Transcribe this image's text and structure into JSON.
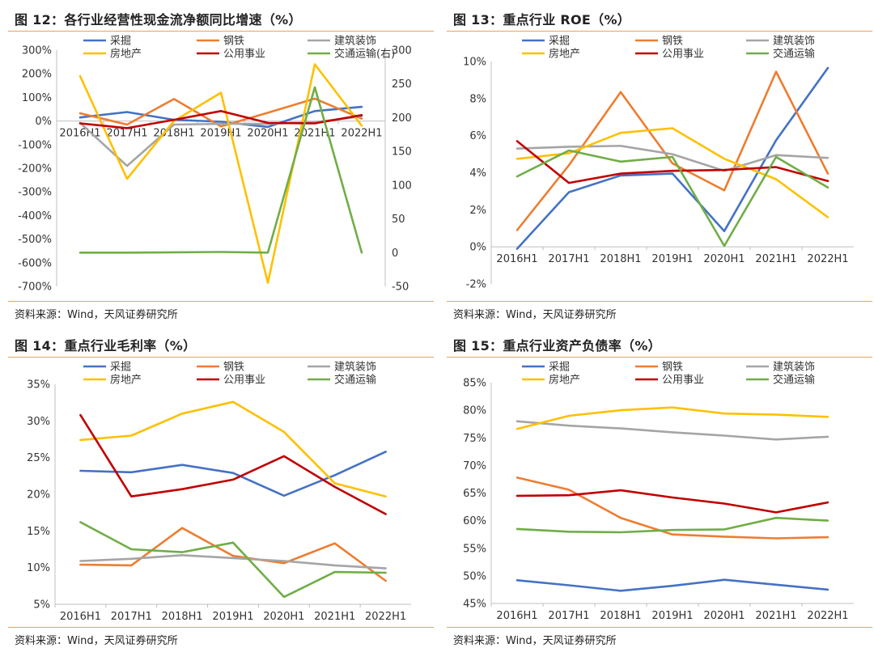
{
  "source": "资料来源：Wind，天风证券研究所",
  "colors": {
    "采掘": "#4472c4",
    "钢铁": "#ed7d31",
    "建筑装饰": "#a5a5a5",
    "房地产": "#ffc000",
    "公用事业": "#c00000",
    "交通运输": "#70ad47",
    "交通运输(右)": "#70ad47"
  },
  "panels": [
    {
      "title": "图 12：各行业经营性现金流净额同比增速（%）",
      "chart_data": {
        "type": "line",
        "categories": [
          "2016H1",
          "2017H1",
          "2018H1",
          "2019H1",
          "2020H1",
          "2021H1",
          "2022H1"
        ],
        "y_ticks": [
          "300%",
          "200%",
          "100%",
          "0%",
          "-100%",
          "-200%",
          "-300%",
          "-400%",
          "-500%",
          "-600%",
          "-700%"
        ],
        "ylim": [
          -700,
          300
        ],
        "y2_ticks": [
          "300",
          "250",
          "200",
          "150",
          "100",
          "50",
          "0",
          "-50"
        ],
        "y2lim": [
          -50,
          300
        ],
        "grid": false,
        "legend_position": "top",
        "series": [
          {
            "name": "采掘",
            "axis": "left",
            "values": [
              15,
              38,
              5,
              -3,
              -25,
              42,
              60
            ]
          },
          {
            "name": "钢铁",
            "axis": "left",
            "values": [
              33,
              -15,
              93,
              -23,
              35,
              95,
              10
            ]
          },
          {
            "name": "建筑装饰",
            "axis": "left",
            "values": [
              -8,
              -190,
              -15,
              -12,
              -12,
              -5,
              20
            ]
          },
          {
            "name": "房地产",
            "axis": "left",
            "values": [
              190,
              -245,
              0,
              120,
              -685,
              240,
              -20
            ]
          },
          {
            "name": "公用事业",
            "axis": "left",
            "values": [
              -10,
              -30,
              5,
              42,
              -8,
              -10,
              25
            ]
          },
          {
            "name": "交通运输(右)",
            "axis": "right",
            "values": [
              0,
              0,
              0.5,
              1,
              0,
              245,
              0
            ]
          }
        ]
      }
    },
    {
      "title": "图 13：重点行业 ROE（%）",
      "chart_data": {
        "type": "line",
        "categories": [
          "2016H1",
          "2017H1",
          "2018H1",
          "2019H1",
          "2020H1",
          "2021H1",
          "2022H1"
        ],
        "y_ticks": [
          "10%",
          "8%",
          "6%",
          "4%",
          "2%",
          "0%",
          "-2%"
        ],
        "ylim": [
          -2,
          10
        ],
        "grid": false,
        "legend_position": "top",
        "series": [
          {
            "name": "采掘",
            "values": [
              -0.1,
              2.95,
              3.85,
              3.95,
              0.85,
              5.75,
              9.65
            ]
          },
          {
            "name": "钢铁",
            "values": [
              0.9,
              4.4,
              8.35,
              4.5,
              3.05,
              9.45,
              3.95
            ]
          },
          {
            "name": "建筑装饰",
            "values": [
              5.3,
              5.4,
              5.45,
              5.0,
              4.1,
              4.95,
              4.8
            ]
          },
          {
            "name": "房地产",
            "values": [
              4.75,
              5.05,
              6.15,
              6.4,
              4.75,
              3.65,
              1.6
            ]
          },
          {
            "name": "公用事业",
            "values": [
              5.7,
              3.45,
              3.95,
              4.1,
              4.15,
              4.3,
              3.55
            ]
          },
          {
            "name": "交通运输",
            "values": [
              3.8,
              5.2,
              4.6,
              4.85,
              0.05,
              4.85,
              3.2
            ]
          }
        ]
      }
    },
    {
      "title": "图 14：重点行业毛利率（%）",
      "chart_data": {
        "type": "line",
        "categories": [
          "2016H1",
          "2017H1",
          "2018H1",
          "2019H1",
          "2020H1",
          "2021H1",
          "2022H1"
        ],
        "y_ticks": [
          "35%",
          "30%",
          "25%",
          "20%",
          "15%",
          "10%",
          "5%"
        ],
        "ylim": [
          5,
          35
        ],
        "grid": false,
        "legend_position": "top",
        "series": [
          {
            "name": "采掘",
            "values": [
              23.2,
              23.0,
              24.0,
              22.9,
              19.8,
              22.6,
              25.8
            ]
          },
          {
            "name": "钢铁",
            "values": [
              10.4,
              10.3,
              15.4,
              11.6,
              10.6,
              13.3,
              8.2
            ]
          },
          {
            "name": "建筑装饰",
            "values": [
              10.9,
              11.2,
              11.7,
              11.3,
              10.9,
              10.3,
              9.9
            ]
          },
          {
            "name": "房地产",
            "values": [
              27.4,
              28.0,
              31.0,
              32.6,
              28.5,
              21.5,
              19.7
            ]
          },
          {
            "name": "公用事业",
            "values": [
              30.8,
              19.7,
              20.7,
              22.0,
              25.2,
              21.0,
              17.3
            ]
          },
          {
            "name": "交通运输",
            "values": [
              16.2,
              12.5,
              12.1,
              13.4,
              6.0,
              9.4,
              9.3
            ]
          }
        ]
      }
    },
    {
      "title": "图 15：重点行业资产负债率（%）",
      "chart_data": {
        "type": "line",
        "categories": [
          "2016H1",
          "2017H1",
          "2018H1",
          "2019H1",
          "2020H1",
          "2021H1",
          "2022H1"
        ],
        "y_ticks": [
          "85%",
          "80%",
          "75%",
          "70%",
          "65%",
          "60%",
          "55%",
          "50%",
          "45%"
        ],
        "ylim": [
          45,
          85
        ],
        "grid": false,
        "legend_position": "top",
        "series": [
          {
            "name": "采掘",
            "values": [
              49.2,
              48.3,
              47.3,
              48.2,
              49.3,
              48.4,
              47.5
            ]
          },
          {
            "name": "钢铁",
            "values": [
              67.8,
              65.6,
              60.5,
              57.5,
              57.1,
              56.8,
              57.0
            ]
          },
          {
            "name": "建筑装饰",
            "values": [
              78.0,
              77.2,
              76.7,
              76.0,
              75.4,
              74.7,
              75.2
            ]
          },
          {
            "name": "房地产",
            "values": [
              76.6,
              79.0,
              80.0,
              80.5,
              79.4,
              79.2,
              78.8
            ]
          },
          {
            "name": "公用事业",
            "values": [
              64.5,
              64.6,
              65.5,
              64.2,
              63.1,
              61.5,
              63.3
            ]
          },
          {
            "name": "交通运输",
            "values": [
              58.5,
              58.0,
              57.9,
              58.3,
              58.4,
              60.5,
              60.0
            ]
          }
        ]
      }
    }
  ]
}
